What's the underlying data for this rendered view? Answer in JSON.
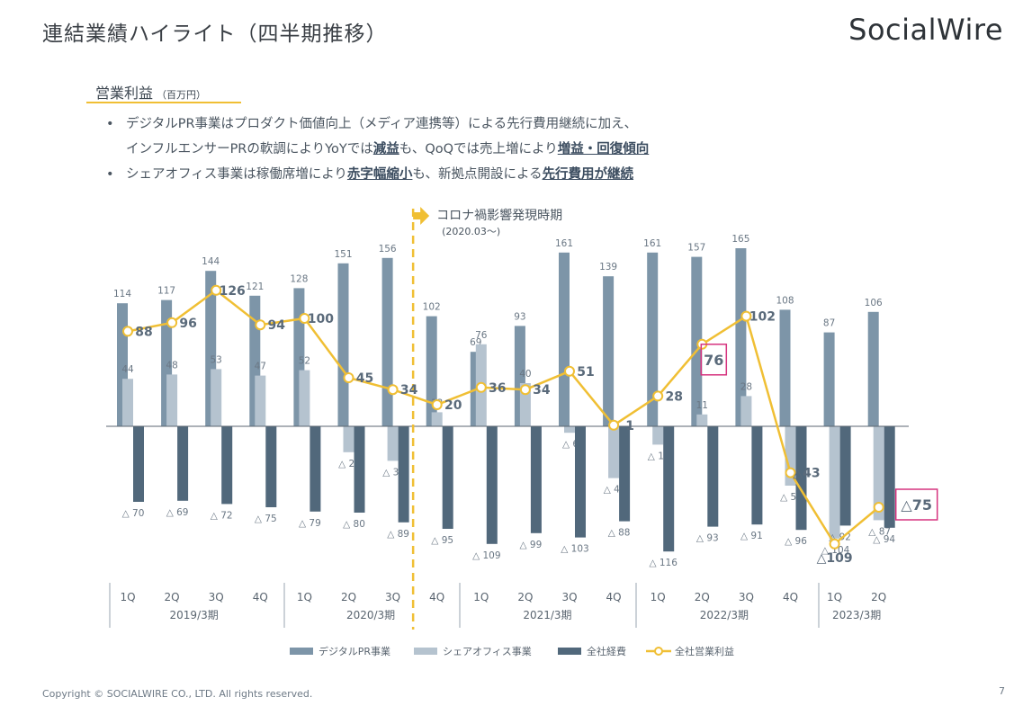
{
  "header": {
    "title": "連結業績ハイライト（四半期推移）",
    "logo": "SocialWire"
  },
  "section": {
    "title": "営業利益",
    "unit": "（百万円）"
  },
  "bullets": [
    {
      "parts": [
        {
          "text": "デジタルPR事業はプロダクト価値向上（メディア連携等）による先行費用継続に加え、",
          "bold": false
        }
      ]
    },
    {
      "parts": [
        {
          "text": "インフルエンサーPRの軟調によりYoYでは",
          "bold": false
        },
        {
          "text": "減益",
          "bold": true
        },
        {
          "text": "も、QoQでは売上増により",
          "bold": false
        },
        {
          "text": "増益・回復傾向",
          "bold": true
        }
      ]
    },
    {
      "parts": [
        {
          "text": "シェアオフィス事業は稼働席増により",
          "bold": false
        },
        {
          "text": "赤字幅縮小",
          "bold": true
        },
        {
          "text": "も、新拠点開設による",
          "bold": false
        },
        {
          "text": "先行費用が継続",
          "bold": true
        }
      ]
    }
  ],
  "annotation": {
    "label": "コロナ禍影響発現時期",
    "sub": "(2020.03〜)"
  },
  "footer": {
    "copyright": "Copyright © SOCIALWIRE CO., LTD. All rights reserved.",
    "page": "7"
  },
  "chart_data": {
    "type": "bar",
    "categories": [
      "1Q",
      "2Q",
      "3Q",
      "4Q",
      "1Q",
      "2Q",
      "3Q",
      "4Q",
      "1Q",
      "2Q",
      "3Q",
      "4Q",
      "1Q",
      "2Q",
      "3Q",
      "4Q",
      "1Q",
      "2Q"
    ],
    "groups": [
      {
        "label": "2019/3期",
        "start": 0,
        "end": 3
      },
      {
        "label": "2020/3期",
        "start": 4,
        "end": 7
      },
      {
        "label": "2021/3期",
        "start": 8,
        "end": 11
      },
      {
        "label": "2022/3期",
        "start": 12,
        "end": 15
      },
      {
        "label": "2023/3期",
        "start": 16,
        "end": 17
      }
    ],
    "series": [
      {
        "name": "デジタルPR事業",
        "kind": "bar",
        "color": "#7d95a8",
        "values": [
          114,
          117,
          144,
          121,
          128,
          151,
          156,
          102,
          69,
          93,
          161,
          139,
          161,
          157,
          165,
          108,
          87,
          106
        ],
        "labels": [
          "114",
          "117",
          "144",
          "121",
          "128",
          "151",
          "156",
          "102",
          "69",
          "93",
          "161",
          "139",
          "161",
          "157",
          "165",
          "108",
          "87",
          "106"
        ]
      },
      {
        "name": "シェアオフィス事業",
        "kind": "bar",
        "color": "#b5c3cf",
        "values": [
          44,
          48,
          53,
          47,
          52,
          -24,
          -32,
          13,
          76,
          40,
          -6,
          -48,
          -17,
          11,
          28,
          -55,
          -104,
          -87
        ],
        "labels": [
          "44",
          "48",
          "53",
          "47",
          "52",
          "△ 24",
          "△ 32",
          "13",
          "76",
          "40",
          "△ 6",
          "△ 48",
          "△ 17",
          "11",
          "28",
          "△ 55",
          "△ 104",
          "△ 87"
        ]
      },
      {
        "name": "全社経費",
        "kind": "bar",
        "color": "#51687b",
        "values": [
          -70,
          -69,
          -72,
          -75,
          -79,
          -80,
          -89,
          -95,
          -109,
          -99,
          -103,
          -88,
          -116,
          -93,
          -91,
          -96,
          -92,
          -94
        ],
        "labels": [
          "△ 70",
          "△ 69",
          "△ 72",
          "△ 75",
          "△ 79",
          "△ 80",
          "△ 89",
          "△ 95",
          "△ 109",
          "△ 99",
          "△ 103",
          "△ 88",
          "△ 116",
          "△ 93",
          "△ 91",
          "△ 96",
          "△ 92",
          "△ 94"
        ]
      },
      {
        "name": "全社営業利益",
        "kind": "line",
        "color": "#f0bf34",
        "values": [
          88,
          96,
          126,
          94,
          100,
          45,
          34,
          20,
          36,
          34,
          51,
          1,
          28,
          76,
          102,
          -43,
          -109,
          -75
        ],
        "labels": [
          "88",
          "96",
          "126",
          "94",
          "100",
          "45",
          "34",
          "20",
          "36",
          "34",
          "51",
          "1",
          "28",
          "76",
          "102",
          "△43",
          "△109",
          "△75"
        ]
      }
    ],
    "highlights": [
      13,
      17
    ],
    "covid_marker_after_index": 6,
    "ylim": [
      -130,
      175
    ],
    "legend_position": "bottom"
  }
}
